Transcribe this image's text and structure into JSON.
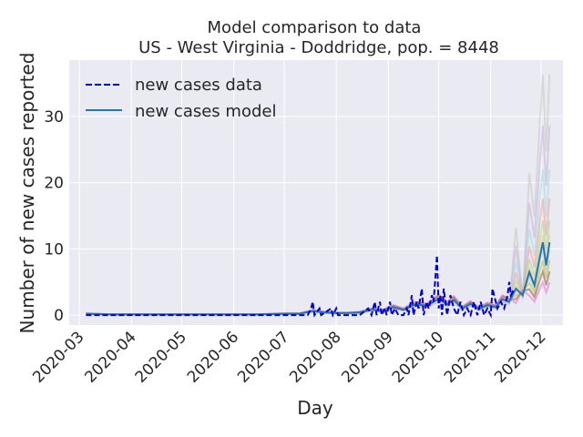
{
  "chart_data": {
    "type": "line",
    "title": "Model comparison to data",
    "subtitle": "US - West Virginia - Doddridge, pop. = 8448",
    "xlabel": "Day",
    "ylabel": "Number of new cases reported",
    "xlim": [
      "2020-02-24",
      "2020-12-14"
    ],
    "ylim": [
      -1.5,
      38.5
    ],
    "yticks": [
      0,
      10,
      20,
      30
    ],
    "xticks": [
      "2020-03-01",
      "2020-04-01",
      "2020-05-01",
      "2020-06-01",
      "2020-07-01",
      "2020-08-01",
      "2020-09-01",
      "2020-10-01",
      "2020-11-01",
      "2020-12-01"
    ],
    "xtick_labels": [
      "2020-03",
      "2020-04",
      "2020-05",
      "2020-06",
      "2020-07",
      "2020-08",
      "2020-09",
      "2020-10",
      "2020-11",
      "2020-12"
    ],
    "grid": true,
    "legend_position": "top-left",
    "legend": [
      {
        "label": "new cases data",
        "style": "dashed",
        "color": "#0000dd"
      },
      {
        "label": "new cases model",
        "style": "solid",
        "color": "#1f77b4"
      }
    ],
    "series": [
      {
        "name": "new cases data",
        "color": "#0000dd",
        "style": "dashed",
        "points": [
          [
            "2020-03-05",
            0
          ],
          [
            "2020-06-30",
            0
          ],
          [
            "2020-07-15",
            0
          ],
          [
            "2020-07-17",
            1
          ],
          [
            "2020-07-18",
            2
          ],
          [
            "2020-07-19",
            0
          ],
          [
            "2020-07-22",
            1
          ],
          [
            "2020-07-23",
            0
          ],
          [
            "2020-07-29",
            1
          ],
          [
            "2020-07-30",
            0
          ],
          [
            "2020-08-01",
            1
          ],
          [
            "2020-08-02",
            0
          ],
          [
            "2020-08-15",
            0
          ],
          [
            "2020-08-20",
            1
          ],
          [
            "2020-08-22",
            0
          ],
          [
            "2020-08-24",
            2
          ],
          [
            "2020-08-25",
            0
          ],
          [
            "2020-08-27",
            2
          ],
          [
            "2020-08-28",
            0
          ],
          [
            "2020-08-30",
            1
          ],
          [
            "2020-08-31",
            0
          ],
          [
            "2020-09-02",
            2
          ],
          [
            "2020-09-03",
            0
          ],
          [
            "2020-09-05",
            1
          ],
          [
            "2020-09-07",
            0
          ],
          [
            "2020-09-10",
            0
          ],
          [
            "2020-09-12",
            1
          ],
          [
            "2020-09-13",
            0
          ],
          [
            "2020-09-15",
            3
          ],
          [
            "2020-09-16",
            0
          ],
          [
            "2020-09-18",
            2
          ],
          [
            "2020-09-19",
            1
          ],
          [
            "2020-09-21",
            4
          ],
          [
            "2020-09-22",
            0
          ],
          [
            "2020-09-24",
            2
          ],
          [
            "2020-09-25",
            1
          ],
          [
            "2020-09-27",
            3
          ],
          [
            "2020-09-28",
            2
          ],
          [
            "2020-09-30",
            9
          ],
          [
            "2020-10-01",
            1
          ],
          [
            "2020-10-02",
            3
          ],
          [
            "2020-10-03",
            0
          ],
          [
            "2020-10-04",
            4
          ],
          [
            "2020-10-05",
            2
          ],
          [
            "2020-10-06",
            0
          ],
          [
            "2020-10-08",
            3
          ],
          [
            "2020-10-10",
            1
          ],
          [
            "2020-10-12",
            0
          ],
          [
            "2020-10-14",
            2
          ],
          [
            "2020-10-16",
            0
          ],
          [
            "2020-10-18",
            1
          ],
          [
            "2020-10-20",
            0
          ],
          [
            "2020-10-22",
            2
          ],
          [
            "2020-10-24",
            0
          ],
          [
            "2020-10-26",
            2
          ],
          [
            "2020-10-28",
            0
          ],
          [
            "2020-10-30",
            1
          ],
          [
            "2020-11-01",
            0
          ],
          [
            "2020-11-02",
            4
          ],
          [
            "2020-11-03",
            3
          ],
          [
            "2020-11-05",
            1
          ],
          [
            "2020-11-07",
            2
          ],
          [
            "2020-11-09",
            1
          ],
          [
            "2020-11-11",
            3
          ],
          [
            "2020-11-12",
            5
          ],
          [
            "2020-11-13",
            3
          ],
          [
            "2020-11-15",
            4
          ]
        ]
      },
      {
        "name": "new cases model",
        "color": "#1f77b4",
        "style": "solid",
        "points": [
          [
            "2020-03-05",
            0.2
          ],
          [
            "2020-03-20",
            0.1
          ],
          [
            "2020-04-15",
            0.1
          ],
          [
            "2020-05-15",
            0.1
          ],
          [
            "2020-06-15",
            0.1
          ],
          [
            "2020-07-01",
            0.2
          ],
          [
            "2020-07-10",
            0.2
          ],
          [
            "2020-07-18",
            0.6
          ],
          [
            "2020-07-25",
            0.4
          ],
          [
            "2020-08-01",
            0.3
          ],
          [
            "2020-08-08",
            0.3
          ],
          [
            "2020-08-15",
            0.4
          ],
          [
            "2020-08-22",
            0.8
          ],
          [
            "2020-08-28",
            0.6
          ],
          [
            "2020-09-04",
            1.2
          ],
          [
            "2020-09-10",
            0.8
          ],
          [
            "2020-09-17",
            1.6
          ],
          [
            "2020-09-24",
            1.4
          ],
          [
            "2020-10-01",
            2.5
          ],
          [
            "2020-10-06",
            1.6
          ],
          [
            "2020-10-10",
            2.3
          ],
          [
            "2020-10-15",
            1.0
          ],
          [
            "2020-10-20",
            1.7
          ],
          [
            "2020-10-25",
            0.9
          ],
          [
            "2020-10-30",
            1.5
          ],
          [
            "2020-11-04",
            1.2
          ],
          [
            "2020-11-08",
            2.4
          ],
          [
            "2020-11-12",
            2.0
          ],
          [
            "2020-11-16",
            4.0
          ],
          [
            "2020-11-20",
            3.0
          ],
          [
            "2020-11-24",
            6.5
          ],
          [
            "2020-11-27",
            4.5
          ],
          [
            "2020-11-30",
            8.5
          ],
          [
            "2020-12-02",
            11.0
          ],
          [
            "2020-12-04",
            7.5
          ],
          [
            "2020-12-06",
            11.0
          ]
        ]
      }
    ]
  }
}
